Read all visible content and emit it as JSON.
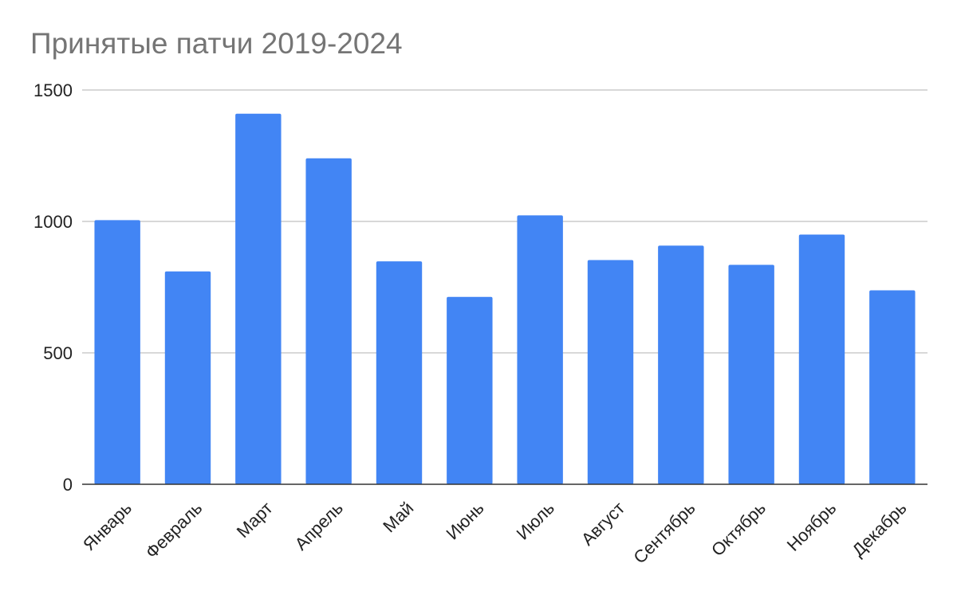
{
  "chart_data": {
    "type": "bar",
    "title": "Принятые патчи 2019-2024",
    "xlabel": "",
    "ylabel": "",
    "categories": [
      "Январь",
      "Февраль",
      "Март",
      "Апрель",
      "Май",
      "Июнь",
      "Июль",
      "Август",
      "Сентябрь",
      "Октябрь",
      "Ноябрь",
      "Декабрь"
    ],
    "values": [
      1005,
      810,
      1410,
      1240,
      848,
      713,
      1023,
      853,
      908,
      835,
      950,
      738
    ],
    "ylim": [
      0,
      1500
    ],
    "yticks": [
      0,
      500,
      1000,
      1500
    ],
    "grid": true,
    "legend": "none",
    "colors": {
      "bar": "#4285f4",
      "grid": "#cccccc",
      "axis": "#333333",
      "title": "#757575"
    }
  }
}
